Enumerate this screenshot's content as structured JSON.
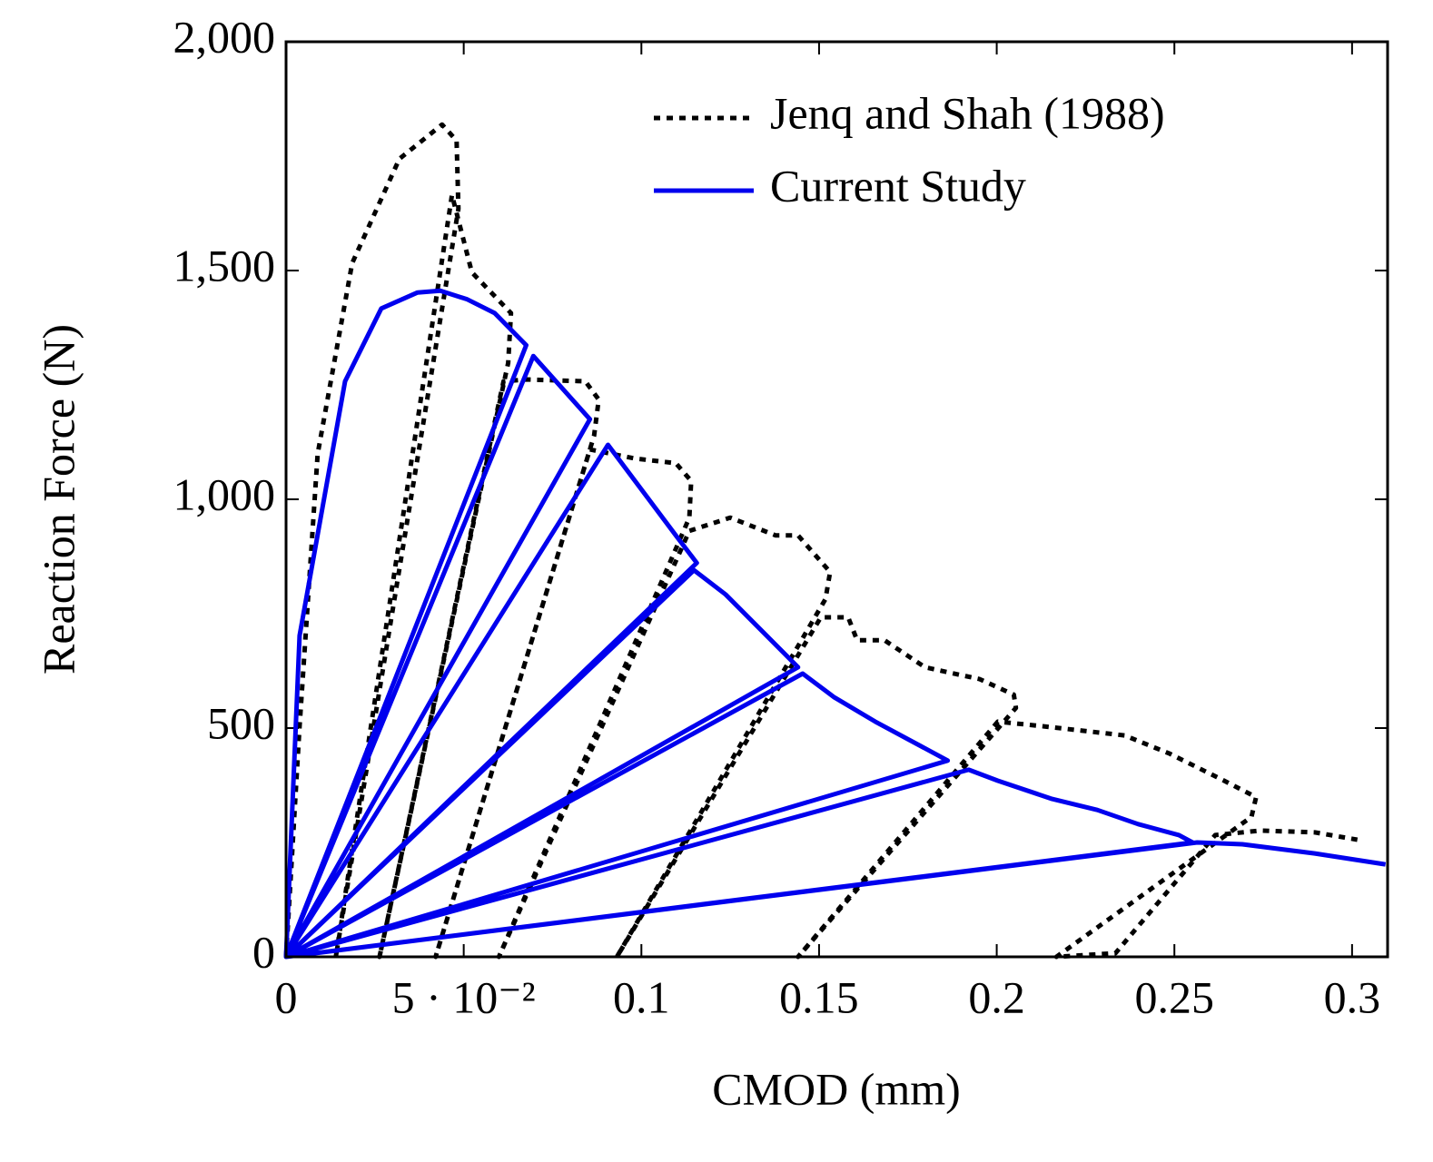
{
  "chart_data": {
    "type": "line",
    "xlabel": "CMOD (mm)",
    "ylabel": "Reaction Force (N)",
    "xlim": [
      0,
      0.31
    ],
    "ylim": [
      0,
      2000
    ],
    "xticks": [
      0,
      {
        "value": 0.05,
        "label": "5 · 10⁻²"
      },
      0.1,
      0.15,
      0.2,
      0.25,
      0.3
    ],
    "yticks": [
      0,
      500,
      {
        "value": 1000,
        "label": "1,000"
      },
      {
        "value": 1500,
        "label": "1,500"
      },
      {
        "value": 2000,
        "label": "2,000"
      }
    ],
    "legend": "upper right",
    "series": [
      {
        "name": "Jenq and Shah (1988)",
        "color": "#000000",
        "style": "dotted",
        "x": [
          0,
          0.0038,
          0.0089,
          0.0186,
          0.0319,
          0.0439,
          0.048,
          0.0485,
          0.014,
          0.0467,
          0.0523,
          0.0633,
          0.0625,
          0.0263,
          0.0612,
          0.0676,
          0.0842,
          0.088,
          0.0867,
          0.0421,
          0.0855,
          0.0982,
          0.1097,
          0.114,
          0.1135,
          0.0599,
          0.1135,
          0.125,
          0.1378,
          0.1441,
          0.1531,
          0.1518,
          0.0931,
          0.1505,
          0.1582,
          0.1607,
          0.1684,
          0.1798,
          0.1952,
          0.2048,
          0.2054,
          0.1441,
          0.2003,
          0.213,
          0.236,
          0.2487,
          0.264,
          0.273,
          0.2717,
          0.2168,
          0.2334,
          0.2615,
          0.2742,
          0.2895,
          0.3015
        ],
        "values": [
          0,
          504,
          1099,
          1516,
          1744,
          1819,
          1784,
          1635,
          0,
          1665,
          1496,
          1407,
          1298,
          0,
          1258,
          1262,
          1258,
          1218,
          1139,
          0,
          1109,
          1089,
          1079,
          1040,
          960,
          0,
          931,
          960,
          921,
          921,
          841,
          782,
          0,
          742,
          742,
          692,
          692,
          633,
          607,
          573,
          544,
          0,
          514,
          504,
          484,
          444,
          385,
          349,
          306,
          0,
          8,
          266,
          276,
          272,
          256
        ]
      },
      {
        "name": "Current Study",
        "color": "#0000ee",
        "style": "solid",
        "x": [
          0,
          0.0038,
          0.0166,
          0.0268,
          0.037,
          0.0434,
          0.051,
          0.0587,
          0.0676,
          0,
          0.0696,
          0.0855,
          0,
          0.0906,
          0.1097,
          0.1156,
          0,
          0.1148,
          0.1237,
          0.1441,
          0,
          0.1454,
          0.1543,
          0.1658,
          0.1862,
          0,
          0.1921,
          0.2003,
          0.2156,
          0.2283,
          0.2398,
          0.2513,
          0.2551,
          0,
          0.2564,
          0.2691,
          0.2895,
          0.3094
        ],
        "values": [
          0,
          702,
          1258,
          1417,
          1452,
          1456,
          1437,
          1407,
          1337,
          0,
          1313,
          1175,
          0,
          1119,
          921,
          861,
          0,
          845,
          792,
          633,
          0,
          619,
          567,
          514,
          429,
          0,
          409,
          385,
          345,
          321,
          290,
          266,
          250,
          0,
          250,
          246,
          226,
          202
        ]
      }
    ]
  }
}
